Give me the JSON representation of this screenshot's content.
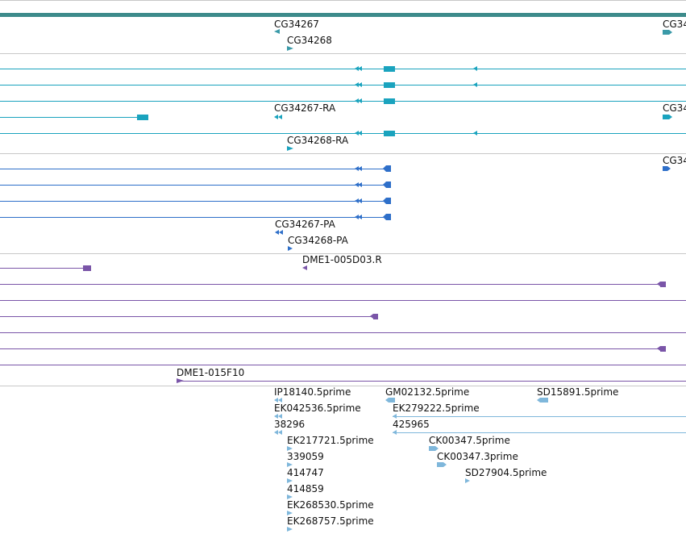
{
  "colors": {
    "summary": "#3d8b8b",
    "gene": "#3a9aa8",
    "transcript": "#1aa3be",
    "protein": "#2e6fc9",
    "probe": "#7a55a8",
    "est": "#7fb7db",
    "separator": "#c8c8c8"
  },
  "tracks": {
    "genes": [
      {
        "name": "CG34267",
        "dir": "left"
      },
      {
        "name": "CG34268",
        "dir": "right"
      },
      {
        "name": "CG34",
        "dir": "right"
      }
    ],
    "transcripts": [
      {
        "name": "CG34267-RA",
        "dir": "left"
      },
      {
        "name": "CG34268-RA",
        "dir": "right"
      },
      {
        "name": "CG34",
        "dir": "right"
      }
    ],
    "proteins": [
      {
        "name": "CG34267-PA",
        "dir": "left"
      },
      {
        "name": "CG34268-PA",
        "dir": "right"
      },
      {
        "name": "CG34",
        "dir": "right"
      }
    ],
    "probes": [
      {
        "name": "DME1-005D03.R",
        "dir": "left"
      },
      {
        "name": "DME1-015F10",
        "dir": "right"
      }
    ],
    "ests": [
      {
        "name": "IP18140.5prime",
        "dir": "left"
      },
      {
        "name": "GM02132.5prime",
        "dir": "left"
      },
      {
        "name": "SD15891.5prime",
        "dir": "left"
      },
      {
        "name": "EK042536.5prime",
        "dir": "left"
      },
      {
        "name": "EK279222.5prime",
        "dir": "left"
      },
      {
        "name": "38296",
        "dir": "left"
      },
      {
        "name": "425965",
        "dir": "left"
      },
      {
        "name": "EK217721.5prime",
        "dir": "right"
      },
      {
        "name": "CK00347.5prime",
        "dir": "right"
      },
      {
        "name": "339059",
        "dir": "right"
      },
      {
        "name": "CK00347.3prime",
        "dir": "right"
      },
      {
        "name": "414747",
        "dir": "right"
      },
      {
        "name": "SD27904.5prime",
        "dir": "right"
      },
      {
        "name": "414859",
        "dir": "right"
      },
      {
        "name": "EK268530.5prime",
        "dir": "right"
      },
      {
        "name": "EK268757.5prime",
        "dir": "right"
      }
    ]
  }
}
